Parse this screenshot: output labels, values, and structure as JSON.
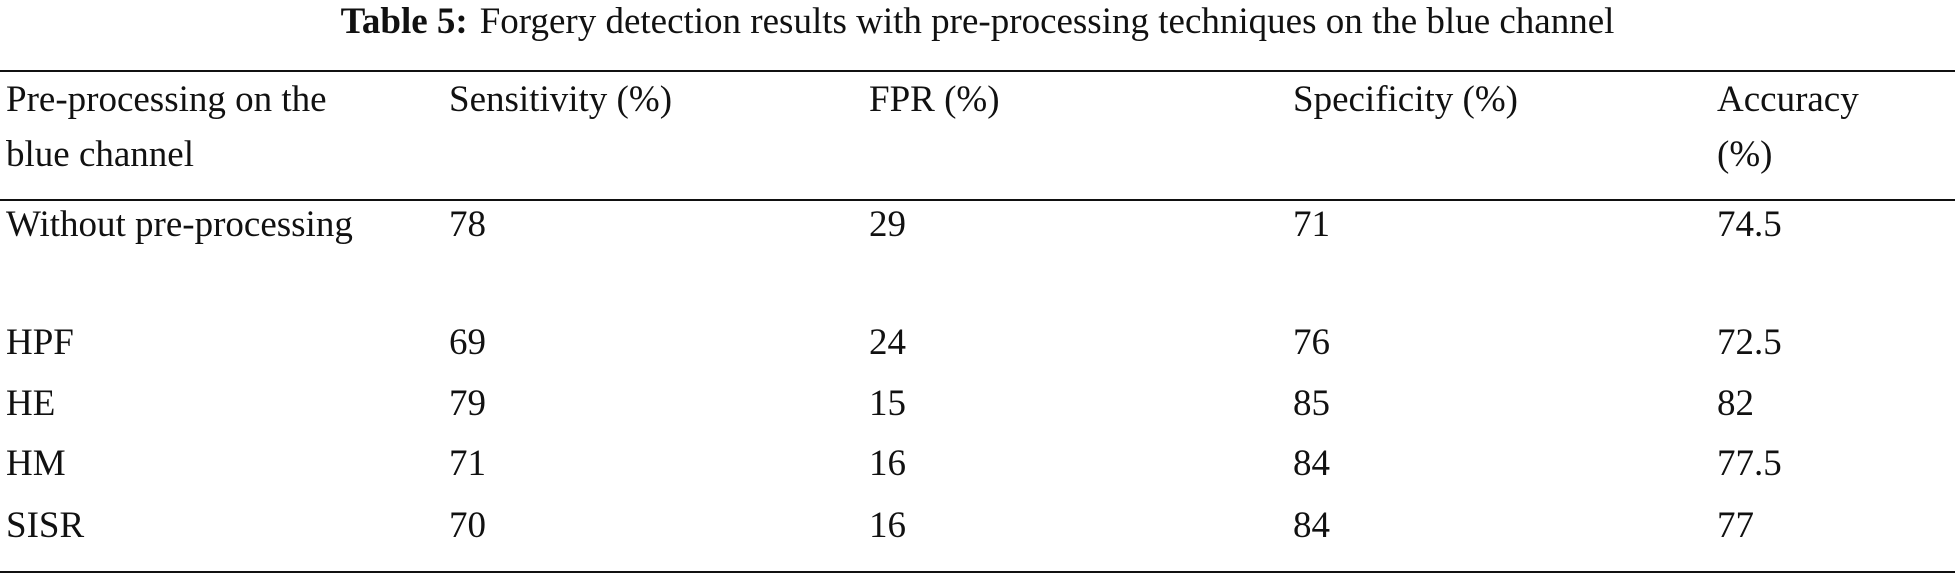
{
  "caption": {
    "label": "Table 5:",
    "text": "Forgery detection results with pre-processing techniques on the blue channel"
  },
  "table": {
    "header": [
      "Pre-processing on the blue channel",
      "Sensitivity (%)",
      "FPR (%)",
      "Specificity (%)",
      "Accuracy (%)"
    ],
    "rows": [
      [
        "Without pre-processing",
        78,
        29,
        71,
        74.5
      ],
      [
        "HPF",
        69,
        24,
        76,
        72.5
      ],
      [
        "HE",
        79,
        15,
        85,
        82
      ],
      [
        "HM",
        71,
        16,
        84,
        77.5
      ],
      [
        "SISR",
        70,
        16,
        84,
        77
      ]
    ]
  }
}
